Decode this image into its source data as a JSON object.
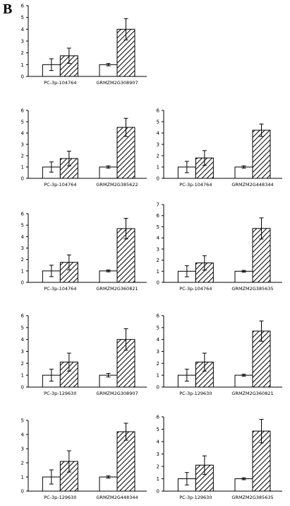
{
  "panel_label": "B",
  "chart_data": [
    {
      "type": "bar",
      "ylim": [
        0,
        6
      ],
      "yticks": [
        0,
        1,
        2,
        3,
        4,
        5,
        6
      ],
      "categories": [
        "PC-3p-104764",
        "GRMZM2G308907"
      ],
      "series": [
        {
          "fill": "open",
          "values": [
            1.0,
            1.0
          ],
          "errors": [
            0.5,
            0.1
          ]
        },
        {
          "fill": "hatched",
          "values": [
            1.75,
            4.0
          ],
          "errors": [
            0.65,
            0.9
          ]
        }
      ],
      "grid": false
    },
    {
      "type": "bar",
      "ylim": [
        0,
        6
      ],
      "yticks": [
        0,
        1,
        2,
        3,
        4,
        5,
        6
      ],
      "categories": [
        "PC-3p-104764",
        "GRMZM2G385622"
      ],
      "series": [
        {
          "fill": "open",
          "values": [
            1.0,
            1.0
          ],
          "errors": [
            0.45,
            0.1
          ]
        },
        {
          "fill": "hatched",
          "values": [
            1.75,
            4.5
          ],
          "errors": [
            0.65,
            0.8
          ]
        }
      ],
      "grid": false
    },
    {
      "type": "bar",
      "ylim": [
        0,
        6
      ],
      "yticks": [
        0,
        1,
        2,
        3,
        4,
        5,
        6
      ],
      "categories": [
        "PC-3p-104764",
        "GRMZM2G448344"
      ],
      "series": [
        {
          "fill": "open",
          "values": [
            1.0,
            1.0
          ],
          "errors": [
            0.5,
            0.1
          ]
        },
        {
          "fill": "hatched",
          "values": [
            1.8,
            4.25
          ],
          "errors": [
            0.65,
            0.55
          ]
        }
      ],
      "grid": false
    },
    {
      "type": "bar",
      "ylim": [
        0,
        6
      ],
      "yticks": [
        0,
        1,
        2,
        3,
        4,
        5,
        6
      ],
      "categories": [
        "PC-3p-104764",
        "GRMZM2G360821"
      ],
      "series": [
        {
          "fill": "open",
          "values": [
            1.0,
            1.0
          ],
          "errors": [
            0.5,
            0.08
          ]
        },
        {
          "fill": "hatched",
          "values": [
            1.75,
            4.7
          ],
          "errors": [
            0.65,
            0.9
          ]
        }
      ],
      "grid": false
    },
    {
      "type": "bar",
      "ylim": [
        0,
        7
      ],
      "yticks": [
        0,
        1,
        2,
        3,
        4,
        5,
        6,
        7
      ],
      "categories": [
        "PC-3p-104764",
        "GRMZM2G385635"
      ],
      "series": [
        {
          "fill": "open",
          "values": [
            1.0,
            1.0
          ],
          "errors": [
            0.5,
            0.08
          ]
        },
        {
          "fill": "hatched",
          "values": [
            1.75,
            4.85
          ],
          "errors": [
            0.65,
            0.95
          ]
        }
      ],
      "grid": false
    },
    {
      "type": "bar",
      "ylim": [
        0,
        6
      ],
      "yticks": [
        0,
        1,
        2,
        3,
        4,
        5,
        6
      ],
      "categories": [
        "PC-3p-129630",
        "GRMZM2G308907"
      ],
      "series": [
        {
          "fill": "open",
          "values": [
            1.0,
            1.0
          ],
          "errors": [
            0.5,
            0.15
          ]
        },
        {
          "fill": "hatched",
          "values": [
            2.1,
            4.0
          ],
          "errors": [
            0.75,
            0.9
          ]
        }
      ],
      "grid": false
    },
    {
      "type": "bar",
      "ylim": [
        0,
        6
      ],
      "yticks": [
        0,
        1,
        2,
        3,
        4,
        5,
        6
      ],
      "categories": [
        "PC-3p-129630",
        "GRMZM2G360821"
      ],
      "series": [
        {
          "fill": "open",
          "values": [
            1.0,
            1.0
          ],
          "errors": [
            0.5,
            0.08
          ]
        },
        {
          "fill": "hatched",
          "values": [
            2.1,
            4.7
          ],
          "errors": [
            0.75,
            0.85
          ]
        }
      ],
      "grid": false
    },
    {
      "type": "bar",
      "ylim": [
        0,
        5
      ],
      "yticks": [
        0,
        1,
        2,
        3,
        4,
        5
      ],
      "categories": [
        "PC-3p-129630",
        "GRMZM2G448344"
      ],
      "series": [
        {
          "fill": "open",
          "values": [
            1.0,
            1.0
          ],
          "errors": [
            0.5,
            0.08
          ]
        },
        {
          "fill": "hatched",
          "values": [
            2.1,
            4.2
          ],
          "errors": [
            0.75,
            0.6
          ]
        }
      ],
      "grid": false
    },
    {
      "type": "bar",
      "ylim": [
        0,
        6
      ],
      "yticks": [
        0,
        1,
        2,
        3,
        4,
        5,
        6
      ],
      "categories": [
        "PC-3p-129630",
        "GRMZM2G385635"
      ],
      "series": [
        {
          "fill": "open",
          "values": [
            1.0,
            1.0
          ],
          "errors": [
            0.5,
            0.08
          ]
        },
        {
          "fill": "hatched",
          "values": [
            2.1,
            4.85
          ],
          "errors": [
            0.75,
            0.95
          ]
        }
      ],
      "grid": false
    }
  ]
}
